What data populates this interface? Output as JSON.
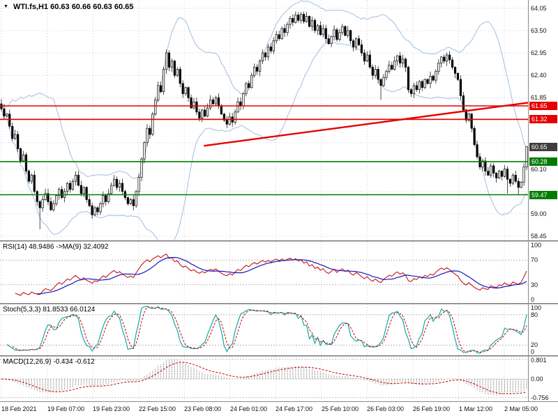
{
  "title": {
    "marker": "▼",
    "text": "WTI.fs,H1 60.63 60.66 60.63 60.65"
  },
  "colors": {
    "resistance": "#e60000",
    "support": "#007c00",
    "current_badge": "#3d3d3d",
    "bollinger": "#a9c4de",
    "candle": "#000000",
    "rsi": "#c00000",
    "rsi_ma": "#1515c0",
    "stoch": "#00a0a0",
    "stoch_signal": "#c00000",
    "macd_hist": "#8c8c8c",
    "macd_signal": "#c00000",
    "trendline": "#e60000"
  },
  "chart_data": {
    "type": "candlestick+indicators",
    "symbol": "WTI.fs",
    "timeframe": "H1",
    "ohlc": {
      "open": "60.63",
      "high": "60.66",
      "low": "60.63",
      "close": "60.65"
    },
    "x_labels": [
      "18 Feb 2021",
      "19 Feb 07:00",
      "19 Feb 23:00",
      "22 Feb 15:00",
      "23 Feb 08:00",
      "24 Feb 01:00",
      "24 Feb 17:00",
      "25 Feb 10:00",
      "26 Feb 03:00",
      "26 Feb 19:00",
      "1 Mar 12:00",
      "2 Mar 05:00"
    ],
    "price_axis": {
      "min": 58.35,
      "max": 64.25,
      "ticks": [
        "64.05",
        "63.50",
        "62.95",
        "62.40",
        "61.85",
        "60.10",
        "59.00",
        "58.45"
      ],
      "grid": [
        64.05,
        63.5,
        62.95,
        62.4,
        61.85,
        61.3,
        60.75,
        60.1,
        59.55,
        59.0,
        58.45
      ]
    },
    "levels": [
      {
        "label": "61.65",
        "price": 61.65,
        "color": "#e60000",
        "line": true,
        "kind": "resistance"
      },
      {
        "label": "61.32",
        "price": 61.32,
        "color": "#e60000",
        "line": true,
        "kind": "resistance"
      },
      {
        "label": "60.65",
        "price": 60.65,
        "color": "#3d3d3d",
        "line": false,
        "kind": "current-price"
      },
      {
        "label": "60.28",
        "price": 60.28,
        "color": "#007c00",
        "line": true,
        "kind": "support"
      },
      {
        "label": "59.47",
        "price": 59.47,
        "color": "#007c00",
        "line": true,
        "kind": "support"
      }
    ],
    "trendline": {
      "x1_frac": 0.386,
      "price1": 60.67,
      "x2_frac": 1.0,
      "price2": 61.73,
      "color": "#e60000"
    },
    "bollinger": {
      "period": 20,
      "deviation": 2
    },
    "candles": {
      "first_open": 61.7,
      "closes": [
        61.58,
        61.4,
        61.45,
        61.15,
        60.85,
        60.95,
        60.6,
        60.3,
        60.45,
        60.05,
        59.8,
        59.95,
        59.55,
        59.3,
        59.15,
        59.35,
        59.5,
        59.3,
        59.1,
        59.25,
        59.45,
        59.6,
        59.4,
        59.55,
        59.75,
        59.6,
        59.8,
        59.95,
        59.7,
        59.5,
        59.65,
        59.35,
        59.2,
        58.98,
        59.15,
        59.05,
        59.25,
        59.45,
        59.3,
        59.5,
        59.7,
        59.85,
        59.65,
        59.75,
        59.55,
        59.4,
        59.25,
        59.35,
        59.2,
        59.55,
        59.9,
        60.35,
        60.75,
        61.1,
        60.95,
        61.45,
        61.8,
        62.15,
        62.0,
        62.55,
        62.95,
        62.6,
        62.75,
        62.4,
        62.55,
        62.2,
        61.95,
        62.1,
        61.85,
        61.6,
        61.75,
        61.5,
        61.35,
        61.55,
        61.4,
        61.6,
        61.8,
        61.7,
        61.85,
        61.65,
        61.45,
        61.3,
        61.2,
        61.38,
        61.25,
        61.5,
        61.75,
        61.65,
        61.95,
        62.2,
        62.1,
        62.4,
        62.6,
        62.5,
        62.75,
        62.95,
        62.85,
        63.1,
        63.0,
        63.25,
        63.4,
        63.3,
        63.55,
        63.45,
        63.65,
        63.8,
        63.7,
        63.88,
        63.75,
        63.9,
        63.72,
        63.85,
        63.6,
        63.75,
        63.5,
        63.62,
        63.4,
        63.55,
        63.3,
        63.18,
        63.35,
        63.52,
        63.28,
        63.45,
        63.6,
        63.38,
        63.5,
        63.25,
        63.1,
        63.3,
        63.15,
        62.95,
        62.75,
        62.9,
        62.6,
        62.4,
        62.55,
        62.3,
        62.15,
        62.35,
        62.5,
        62.65,
        62.55,
        62.75,
        62.88,
        62.7,
        62.8,
        62.6,
        62.05,
        61.95,
        62.15,
        62.05,
        62.25,
        62.1,
        62.3,
        62.2,
        62.38,
        62.28,
        62.5,
        62.7,
        62.85,
        62.75,
        62.9,
        62.78,
        62.6,
        62.45,
        62.3,
        61.9,
        61.55,
        61.3,
        61.45,
        61.1,
        60.7,
        60.4,
        60.15,
        60.3,
        60.05,
        59.95,
        60.18,
        60.0,
        59.88,
        60.05,
        59.92,
        60.1,
        59.85,
        59.75,
        59.95,
        59.8,
        59.65,
        59.78,
        60.15,
        60.65
      ],
      "wick_overrides": {
        "0": {
          "high": 61.82
        },
        "14": {
          "low": 58.62
        },
        "33": {
          "low": 58.88
        },
        "138": {
          "low": 61.8
        },
        "184": {
          "low": 59.5
        },
        "188": {
          "low": 59.47
        },
        "191": {
          "high": 60.66
        }
      }
    },
    "panels": [
      {
        "name": "rsi",
        "label": "RSI(14) 48.9486 ->MA(9) 32.4092",
        "axis_ticks": [
          "100",
          "70",
          "30",
          "0"
        ],
        "axis_values": [
          100,
          70,
          30,
          0
        ],
        "levels": [
          70,
          30
        ],
        "range": [
          0,
          100
        ]
      },
      {
        "name": "stoch",
        "label": "Stoch(5,3,3) 81.8533 66.0124",
        "axis_ticks": [
          "100",
          "80",
          "20",
          "0"
        ],
        "axis_values": [
          100,
          80,
          20,
          0
        ],
        "levels": [
          80,
          20
        ],
        "range": [
          0,
          100
        ]
      },
      {
        "name": "macd",
        "label": "MACD(12,26,9) -0.434 -0.612",
        "axis_ticks": [
          "0.801",
          "0.00",
          "-0.756"
        ],
        "axis_values": [
          0.801,
          0,
          -0.756
        ],
        "range": [
          -0.82,
          0.82
        ]
      }
    ]
  }
}
